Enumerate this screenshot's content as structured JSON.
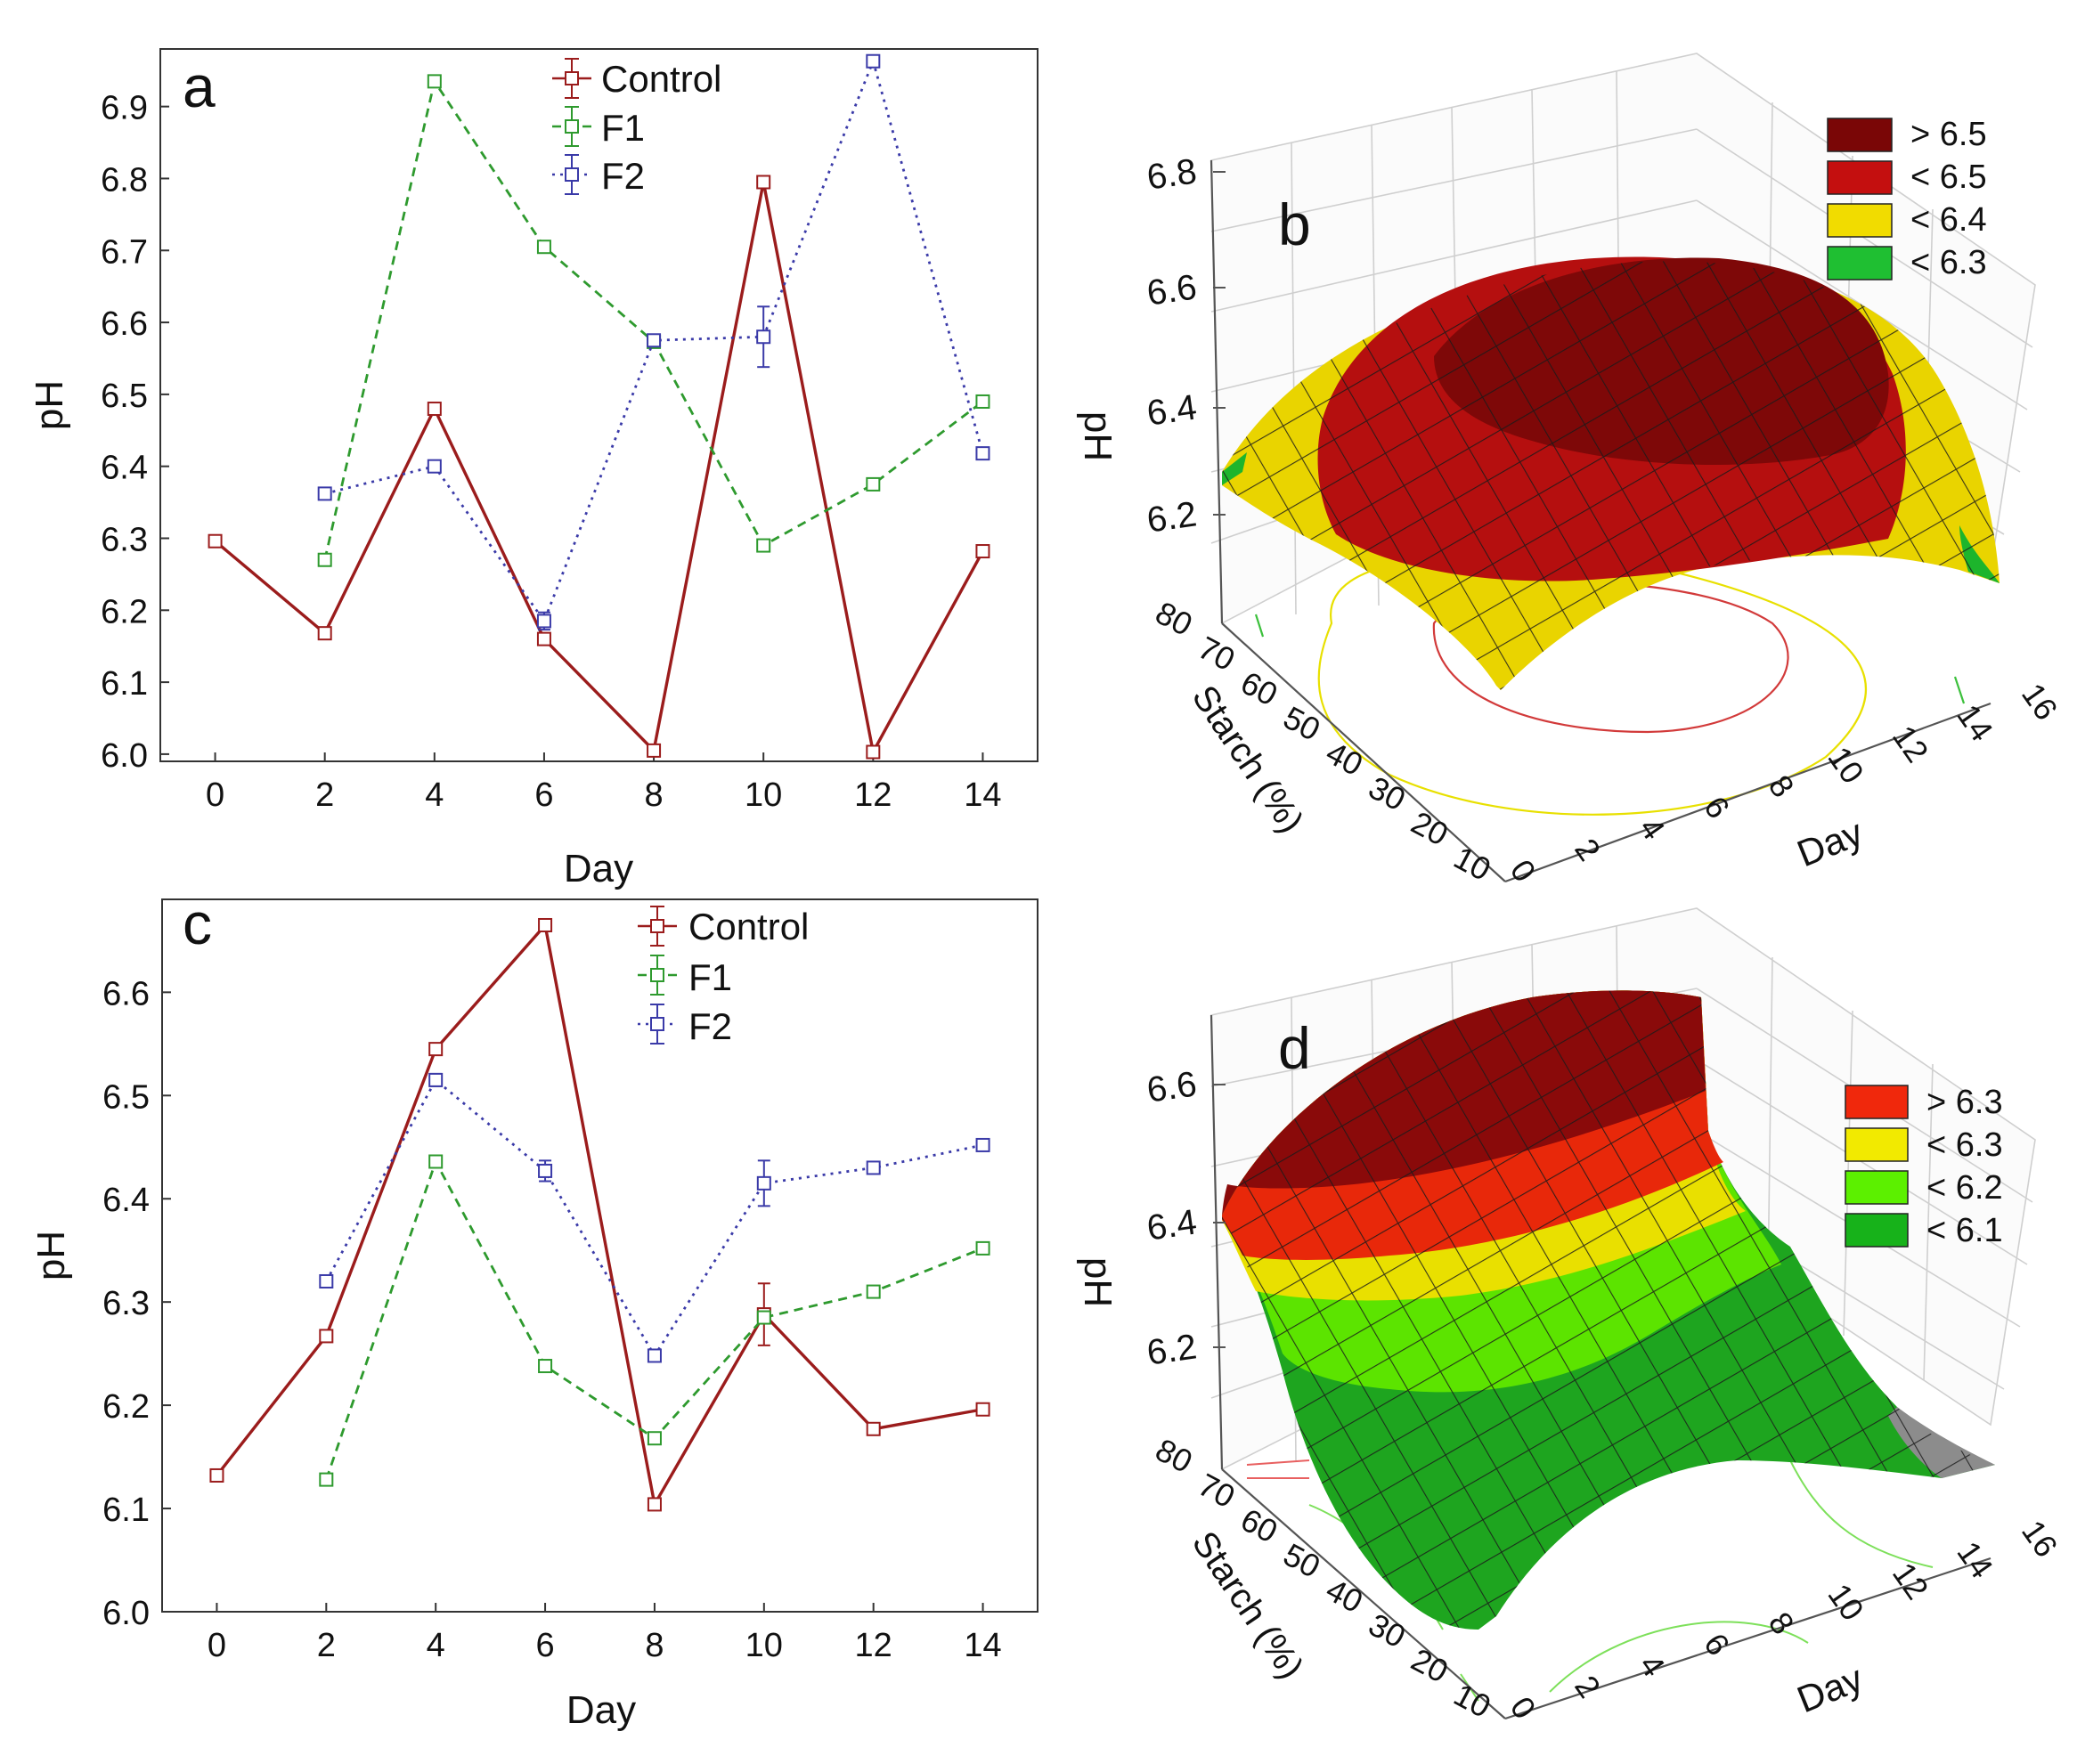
{
  "figure": {
    "panel_a": {
      "letter": "a",
      "xlabel": "Day",
      "ylabel": "pH",
      "legend": [
        "Control",
        "F1",
        "F2"
      ]
    },
    "panel_b": {
      "letter": "b",
      "zlabel": "pH",
      "xlabel": "Day",
      "ylabel": "Starch (%)",
      "legend": [
        "> 6.5",
        "< 6.5",
        "< 6.4",
        "< 6.3"
      ]
    },
    "panel_c": {
      "letter": "c",
      "xlabel": "Day",
      "ylabel": "pH",
      "legend": [
        "Control",
        "F1",
        "F2"
      ]
    },
    "panel_d": {
      "letter": "d",
      "zlabel": "pH",
      "xlabel": "Day",
      "ylabel": "Starch (%)",
      "legend": [
        "> 6.3",
        "< 6.3",
        "< 6.2",
        "< 6.1"
      ]
    }
  },
  "colors": {
    "control": "#9b1c1c",
    "f1": "#2e9a2e",
    "f2": "#3a3aa8",
    "b_legend": [
      "#7a0606",
      "#c40f0f",
      "#f1dc00",
      "#1fbf32"
    ],
    "d_legend": [
      "#f0280c",
      "#f2ea00",
      "#5cf000",
      "#17b21a"
    ],
    "b_surface": {
      "high": "#7e0808",
      "mid": "#b50f0f",
      "low": "#e9d400",
      "lowest": "#1db52c"
    },
    "d_surface": {
      "top": "#8a0a0a",
      "orange": "#e8280a",
      "yellow": "#e9e000",
      "light_green": "#5ce400",
      "green": "#1ea51f",
      "grey": "#8c8c8c"
    }
  },
  "chart_data": [
    {
      "panel": "a",
      "type": "line",
      "title": "",
      "xlabel": "Day",
      "ylabel": "pH",
      "xlim": [
        -1,
        15
      ],
      "ylim": [
        5.99,
        6.98
      ],
      "xticks": [
        "0",
        "2",
        "4",
        "6",
        "8",
        "10",
        "12",
        "14"
      ],
      "yticks": [
        "6.0",
        "6.1",
        "6.2",
        "6.3",
        "6.4",
        "6.5",
        "6.6",
        "6.7",
        "6.8",
        "6.9"
      ],
      "legend_position": "top-center",
      "series": [
        {
          "name": "Control",
          "style": "solid",
          "x": [
            0,
            2,
            4,
            6,
            8,
            10,
            12,
            14
          ],
          "values": [
            6.296,
            6.168,
            6.48,
            6.16,
            6.005,
            6.795,
            6.003,
            6.282
          ],
          "err": [
            0.005,
            0.003,
            0.005,
            0.004,
            0.003,
            0.004,
            0.003,
            0.003
          ]
        },
        {
          "name": "F1",
          "style": "dashed",
          "x": [
            2,
            4,
            6,
            8,
            10,
            12,
            14
          ],
          "values": [
            6.27,
            6.935,
            6.705,
            6.573,
            6.29,
            6.375,
            6.49
          ],
          "err": [
            0.003,
            0.003,
            0.003,
            0.003,
            0.003,
            0.003,
            0.003
          ]
        },
        {
          "name": "F2",
          "style": "dotted",
          "x": [
            2,
            4,
            6,
            8,
            10,
            12,
            14
          ],
          "values": [
            6.362,
            6.4,
            6.185,
            6.575,
            6.58,
            6.963,
            6.418
          ],
          "err": [
            0.003,
            0.003,
            0.012,
            0.008,
            0.042,
            0.004,
            0.003
          ]
        }
      ]
    },
    {
      "panel": "b",
      "type": "surface3d",
      "title": "",
      "xlabel": "Day",
      "ylabel": "Starch (%)",
      "zlabel": "pH",
      "x_ticks": [
        "0",
        "2",
        "4",
        "6",
        "8",
        "10",
        "12",
        "14",
        "16"
      ],
      "y_ticks": [
        "10",
        "20",
        "30",
        "40",
        "50",
        "60",
        "70",
        "80"
      ],
      "z_ticks": [
        "6.2",
        "6.4",
        "6.6",
        "6.8"
      ],
      "contour_legend": [
        "> 6.5",
        "< 6.5",
        "< 6.4",
        "< 6.3"
      ]
    },
    {
      "panel": "c",
      "type": "line",
      "title": "",
      "xlabel": "Day",
      "ylabel": "pH",
      "xlim": [
        -1,
        15
      ],
      "ylim": [
        6.0,
        6.69
      ],
      "xticks": [
        "0",
        "2",
        "4",
        "6",
        "8",
        "10",
        "12",
        "14"
      ],
      "yticks": [
        "6.0",
        "6.1",
        "6.2",
        "6.3",
        "6.4",
        "6.5",
        "6.6"
      ],
      "legend_position": "top-center",
      "series": [
        {
          "name": "Control",
          "style": "solid",
          "x": [
            0,
            2,
            4,
            6,
            8,
            10,
            12,
            14
          ],
          "values": [
            6.132,
            6.267,
            6.545,
            6.665,
            6.104,
            6.288,
            6.177,
            6.196
          ],
          "err": [
            0.003,
            0.003,
            0.003,
            0.004,
            0.003,
            0.03,
            0.003,
            0.003
          ]
        },
        {
          "name": "F1",
          "style": "dashed",
          "x": [
            2,
            4,
            6,
            8,
            10,
            12,
            14
          ],
          "values": [
            6.128,
            6.436,
            6.238,
            6.168,
            6.285,
            6.31,
            6.352
          ],
          "err": [
            0.003,
            0.003,
            0.003,
            0.003,
            0.003,
            0.003,
            0.003
          ]
        },
        {
          "name": "F2",
          "style": "dotted",
          "x": [
            2,
            4,
            6,
            8,
            10,
            12,
            14
          ],
          "values": [
            6.32,
            6.515,
            6.427,
            6.248,
            6.415,
            6.43,
            6.452
          ],
          "err": [
            0.003,
            0.006,
            0.01,
            0.003,
            0.022,
            0.003,
            0.003
          ]
        }
      ]
    },
    {
      "panel": "d",
      "type": "surface3d",
      "title": "",
      "xlabel": "Day",
      "ylabel": "Starch (%)",
      "zlabel": "pH",
      "x_ticks": [
        "0",
        "2",
        "4",
        "6",
        "8",
        "10",
        "12",
        "14",
        "16"
      ],
      "y_ticks": [
        "10",
        "20",
        "30",
        "40",
        "50",
        "60",
        "70",
        "80"
      ],
      "z_ticks": [
        "6.2",
        "6.4",
        "6.6"
      ],
      "contour_legend": [
        "> 6.3",
        "< 6.3",
        "< 6.2",
        "< 6.1"
      ]
    }
  ]
}
